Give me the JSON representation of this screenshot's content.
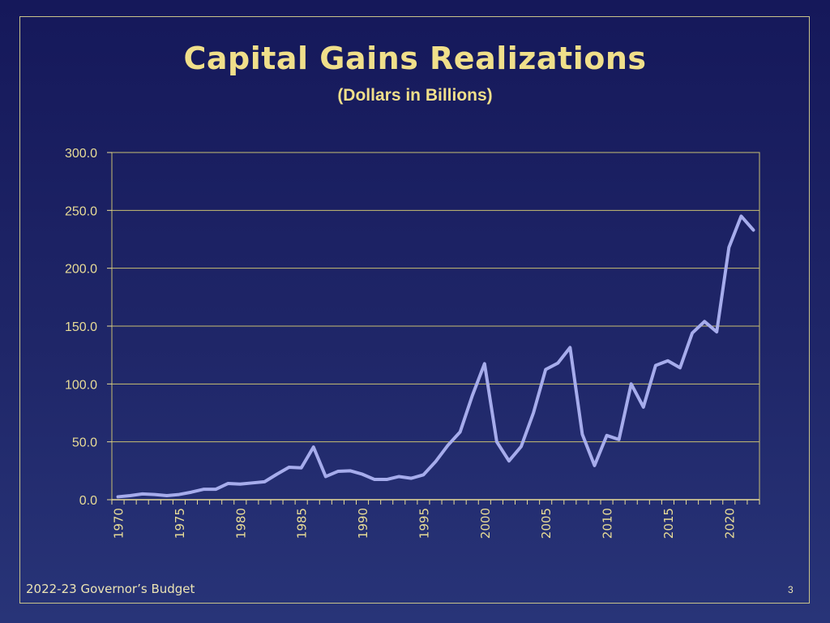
{
  "slide": {
    "title": "Capital Gains Realizations",
    "subtitle": "(Dollars in Billions)",
    "footer": "2022-23 Governor’s Budget",
    "page_number": "3"
  },
  "colors": {
    "background": "#1f2668",
    "title": "#f0df8a",
    "axis": "#e8dc96",
    "gridline": "#c9bf72",
    "series": "#a6acec"
  },
  "chart_data": {
    "type": "line",
    "x": [
      1970,
      1971,
      1972,
      1973,
      1974,
      1975,
      1976,
      1977,
      1978,
      1979,
      1980,
      1981,
      1982,
      1983,
      1984,
      1985,
      1986,
      1987,
      1988,
      1989,
      1990,
      1991,
      1992,
      1993,
      1994,
      1995,
      1996,
      1997,
      1998,
      1999,
      2000,
      2001,
      2002,
      2003,
      2004,
      2005,
      2006,
      2007,
      2008,
      2009,
      2010,
      2011,
      2012,
      2013,
      2014,
      2015,
      2016,
      2017,
      2018,
      2019,
      2020,
      2021,
      2022
    ],
    "series": [
      {
        "values": [
          2.5,
          3.5,
          5.0,
          4.5,
          3.5,
          4.5,
          6.5,
          9.0,
          9.0,
          14.0,
          13.5,
          14.5,
          15.5,
          22.0,
          28.0,
          27.5,
          45.5,
          20.0,
          24.5,
          25.0,
          22.0,
          17.5,
          17.5,
          20.0,
          18.5,
          21.5,
          33.0,
          47.0,
          58.5,
          90.0,
          117.5,
          50.0,
          33.5,
          46.0,
          75.0,
          112.5,
          118.0,
          131.5,
          56.5,
          29.5,
          55.5,
          52.0,
          100.0,
          80.0,
          116.0,
          120.0,
          114.0,
          144.0,
          154.0,
          145.0,
          218.0,
          245.0,
          233.0
        ]
      }
    ],
    "ylim": [
      0,
      300
    ],
    "yticks": [
      "0.0",
      "50.0",
      "100.0",
      "150.0",
      "200.0",
      "250.0",
      "300.0"
    ],
    "xtick_labels": [
      "1970",
      "1975",
      "1980",
      "1985",
      "1990",
      "1995",
      "2000",
      "2005",
      "2010",
      "2015",
      "2020"
    ],
    "grid": true,
    "legend": "none"
  }
}
